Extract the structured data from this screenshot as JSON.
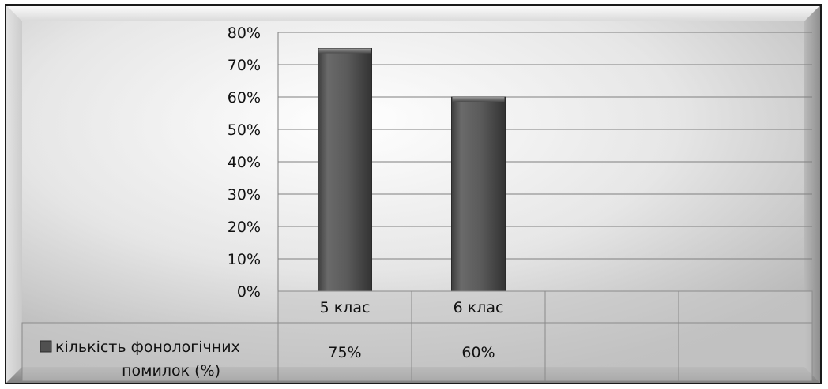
{
  "chart_data": {
    "type": "bar",
    "categories": [
      "5 клас",
      "6 клас",
      "",
      ""
    ],
    "series": [
      {
        "name": "кількість фонологічних помилок (%)",
        "values": [
          75,
          60,
          null,
          null
        ],
        "labels": [
          "75%",
          "60%",
          "",
          ""
        ]
      }
    ],
    "y_ticks": [
      "0%",
      "10%",
      "20%",
      "30%",
      "40%",
      "50%",
      "60%",
      "70%",
      "80%"
    ],
    "ylim": [
      0,
      80
    ],
    "grid": true,
    "legend": "data-table",
    "colors": {
      "bar": "#5a5a5a",
      "frame": "#1a1a1a",
      "grid": "#7f7f7f"
    }
  }
}
